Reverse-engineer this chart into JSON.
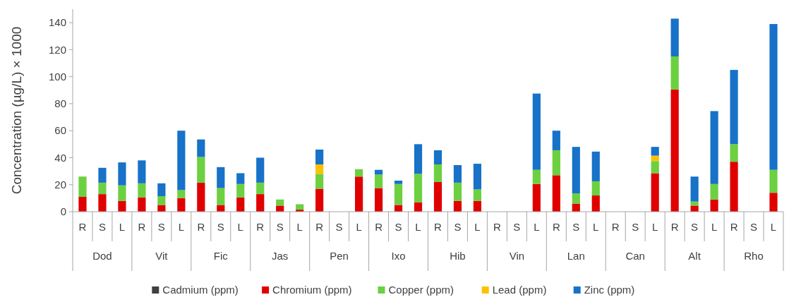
{
  "chart_data": {
    "type": "bar",
    "stacked": true,
    "ylabel": "Concentration (µg/L) × 1000",
    "ylim": [
      0,
      150
    ],
    "yticks": [
      0,
      20,
      40,
      60,
      80,
      100,
      120,
      140
    ],
    "grid": false,
    "legend": "bottom",
    "categories": [
      "R",
      "S",
      "L",
      "R",
      "S",
      "L",
      "R",
      "S",
      "L",
      "R",
      "S",
      "L",
      "R",
      "S",
      "L",
      "R",
      "S",
      "L",
      "R",
      "S",
      "L",
      "R",
      "S",
      "L",
      "R",
      "S",
      "L",
      "R",
      "S",
      "L",
      "R",
      "S",
      "L",
      "R",
      "S",
      "L"
    ],
    "annotations": [
      "Dod",
      "Vit",
      "Fic",
      "Jas",
      "Pen",
      "Ixo",
      "Hib",
      "Vin",
      "Lan",
      "Can",
      "Alt",
      "Rho"
    ],
    "series": [
      {
        "name": "Cadmium (ppm)",
        "color": "#404040",
        "values": [
          null,
          null,
          null,
          null,
          null,
          null,
          null,
          null,
          null,
          null,
          null,
          null,
          null,
          null,
          null,
          null,
          null,
          null,
          null,
          null,
          null,
          null,
          null,
          null,
          null,
          null,
          null,
          null,
          null,
          null,
          null,
          null,
          null,
          null,
          null,
          null
        ]
      },
      {
        "name": "Chromium (ppm)",
        "color": "#e00000",
        "values": [
          11,
          13,
          8,
          10.5,
          5,
          10,
          21.5,
          5,
          10.5,
          13,
          4.5,
          1.5,
          17,
          null,
          26,
          17.5,
          5,
          7,
          22,
          8,
          8,
          null,
          null,
          20.5,
          27,
          6,
          12,
          null,
          null,
          28.5,
          90.5,
          4.5,
          9,
          37,
          null,
          14
        ]
      },
      {
        "name": "Copper (ppm)",
        "color": "#6cd040",
        "values": [
          15,
          8.5,
          11.5,
          10.5,
          6.5,
          6,
          19,
          12.5,
          10,
          8.5,
          4.5,
          4,
          11,
          null,
          5.5,
          10,
          15.5,
          21,
          13,
          13.5,
          8.5,
          null,
          null,
          10.5,
          18.5,
          7.5,
          10.5,
          null,
          null,
          9,
          24.5,
          3,
          11.5,
          13,
          null,
          17
        ]
      },
      {
        "name": "Lead (ppm)",
        "color": "#ffc000",
        "values": [
          null,
          null,
          null,
          null,
          null,
          null,
          null,
          null,
          null,
          null,
          null,
          null,
          7,
          null,
          null,
          null,
          null,
          null,
          null,
          null,
          null,
          null,
          null,
          null,
          null,
          null,
          null,
          null,
          null,
          4,
          null,
          null,
          null,
          null,
          null,
          null
        ]
      },
      {
        "name": "Zinc (ppm)",
        "color": "#1772c8",
        "values": [
          null,
          11,
          17,
          17,
          9.5,
          44,
          13,
          15.5,
          8,
          18.5,
          null,
          null,
          11,
          null,
          null,
          3.5,
          2.5,
          22,
          10.5,
          13,
          19,
          null,
          null,
          56.5,
          14.5,
          34.5,
          22,
          null,
          null,
          6.5,
          28,
          18.5,
          54,
          55,
          null,
          108
        ]
      }
    ]
  }
}
